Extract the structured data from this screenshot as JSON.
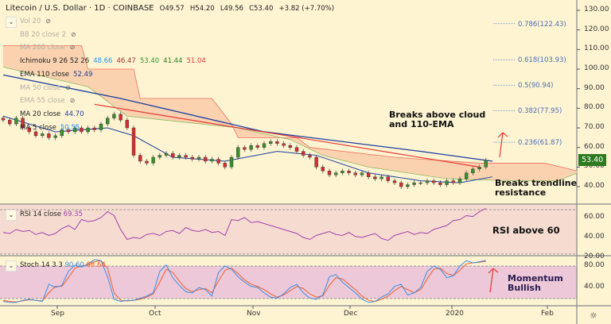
{
  "header": {
    "symbol": "Litecoin / U.S. Dollar · 1D · COINBASE",
    "open": "O49.57",
    "high": "H54.20",
    "low": "L49.56",
    "close": "C53.40",
    "change": "+3.82 (+7.70%)"
  },
  "indicators": [
    {
      "label": "Vol 20",
      "hidden": true
    },
    {
      "label": "BB 20 close 2",
      "hidden": true
    },
    {
      "label": "MA 200 close",
      "hidden": true
    },
    {
      "label": "Ichimoku 9 26 52 26",
      "values": [
        "48.66",
        "46.47",
        "53.40",
        "41.44",
        "51.04"
      ],
      "colors": [
        "#2196f3",
        "#a03030",
        "#3a8f2a",
        "#2d7a1f",
        "#e53935"
      ]
    },
    {
      "label": "EMA 110 close",
      "values": [
        "52.49"
      ],
      "colors": [
        "#1a3e9e"
      ]
    },
    {
      "label": "MA 50 close",
      "hidden": true
    },
    {
      "label": "EMA 55 close",
      "hidden": true
    },
    {
      "label": "MA 20 close",
      "values": [
        "44.70"
      ],
      "colors": [
        "#1a3e9e"
      ]
    },
    {
      "label": "MA 5 close",
      "values": [
        "50.55"
      ],
      "colors": [
        "#2196f3"
      ]
    }
  ],
  "rsi": {
    "label": "RSI 14 close",
    "value": "69.35",
    "color": "#a040b0"
  },
  "stoch": {
    "label": "Stoch 14 3 3",
    "k": "90.60",
    "d": "88.64",
    "k_color": "#3a8ee8",
    "d_color": "#f06030"
  },
  "price_axis": [
    "130.00",
    "120.00",
    "110.00",
    "100.00",
    "90.00",
    "80.00",
    "70.00",
    "60.00",
    "50.00",
    "40.00"
  ],
  "rsi_axis": [
    "60.00",
    "40.00",
    "20.00"
  ],
  "stoch_axis": [
    "80.00",
    "40.00"
  ],
  "last_price": "53.40",
  "x_axis": [
    "Sep",
    "Oct",
    "Nov",
    "Dec",
    "2020",
    "Feb"
  ],
  "fib_levels": [
    {
      "label": "0.786(122.43)",
      "price": 122.43
    },
    {
      "label": "0.618(103.93)",
      "price": 103.93
    },
    {
      "label": "0.5(90.94)",
      "price": 90.94
    },
    {
      "label": "0.382(77.95)",
      "price": 77.95
    },
    {
      "label": "0.236(61.87)",
      "price": 61.87
    }
  ],
  "annotations": {
    "cloud": [
      "Breaks above cloud",
      "and 110-EMA"
    ],
    "trendline": [
      "Breaks trendline",
      "resistance"
    ],
    "rsi": "RSI above 60",
    "stoch": [
      "Momentum",
      "Bullish"
    ]
  },
  "chart_data": {
    "type": "candlestick",
    "closes": [
      74,
      72,
      75,
      70,
      68,
      66,
      67,
      65,
      66,
      69,
      68,
      70,
      68,
      70,
      69,
      72,
      75,
      77,
      74,
      70,
      56,
      53,
      52,
      55,
      56,
      57,
      55,
      56,
      55,
      54,
      55,
      53,
      54,
      52,
      50,
      55,
      60,
      59,
      61,
      60,
      62,
      63,
      62,
      61,
      60,
      58,
      56,
      55,
      50,
      48,
      46,
      47,
      48,
      47,
      46,
      47,
      45,
      44,
      45,
      43,
      42,
      40,
      41,
      42,
      42,
      43,
      42,
      41,
      43,
      42,
      44,
      47,
      49,
      50,
      53.4
    ],
    "ema110": [
      [
        0,
        97
      ],
      [
        18,
        85
      ],
      [
        40,
        68
      ],
      [
        64,
        58
      ],
      [
        75,
        53
      ]
    ],
    "ma20": [
      [
        0,
        76
      ],
      [
        8,
        68
      ],
      [
        16,
        70
      ],
      [
        20,
        66
      ],
      [
        26,
        55
      ],
      [
        34,
        53
      ],
      [
        42,
        58
      ],
      [
        48,
        56
      ],
      [
        56,
        47
      ],
      [
        64,
        43
      ],
      [
        70,
        42
      ],
      [
        75,
        45
      ]
    ],
    "cloud_upper": [
      [
        0,
        112
      ],
      [
        12,
        112
      ],
      [
        13,
        100
      ],
      [
        20,
        100
      ],
      [
        21,
        85
      ],
      [
        32,
        85
      ],
      [
        35,
        72
      ],
      [
        36,
        65
      ],
      [
        45,
        65
      ],
      [
        47,
        60
      ],
      [
        60,
        55
      ],
      [
        73,
        52
      ],
      [
        83,
        52
      ],
      [
        88,
        48
      ]
    ],
    "cloud_lower": [
      [
        0,
        101
      ],
      [
        13,
        91
      ],
      [
        19,
        76
      ],
      [
        36,
        70
      ],
      [
        44,
        64
      ],
      [
        49,
        56
      ],
      [
        56,
        50
      ],
      [
        68,
        44
      ],
      [
        78,
        43
      ],
      [
        85,
        43
      ],
      [
        88,
        47
      ]
    ],
    "trendline": [
      [
        14,
        82
      ],
      [
        73,
        50
      ]
    ],
    "rsi": [
      45,
      44,
      48,
      46,
      47,
      43,
      45,
      42,
      44,
      49,
      52,
      48,
      58,
      56,
      57,
      60,
      66,
      62,
      48,
      38,
      40,
      39,
      43,
      44,
      42,
      46,
      47,
      44,
      50,
      47,
      46,
      48,
      45,
      46,
      42,
      58,
      57,
      60,
      55,
      56,
      54,
      52,
      50,
      48,
      46,
      44,
      40,
      38,
      42,
      44,
      46,
      43,
      42,
      45,
      41,
      40,
      42,
      44,
      39,
      37,
      42,
      44,
      46,
      43,
      45,
      44,
      48,
      50,
      52,
      57,
      58,
      62,
      61,
      66,
      69.35
    ],
    "stoch_k": [
      14,
      12,
      12,
      16,
      18,
      16,
      14,
      46,
      40,
      44,
      70,
      82,
      78,
      84,
      92,
      90,
      60,
      18,
      14,
      16,
      16,
      20,
      24,
      30,
      70,
      82,
      58,
      44,
      32,
      30,
      40,
      36,
      24,
      68,
      80,
      74,
      60,
      50,
      42,
      40,
      30,
      22,
      20,
      28,
      40,
      46,
      30,
      20,
      18,
      26,
      60,
      64,
      50,
      40,
      30,
      18,
      12,
      14,
      22,
      28,
      42,
      46,
      26,
      30,
      40,
      70,
      80,
      74,
      58,
      62,
      80,
      90,
      86,
      88,
      90.6
    ],
    "stoch_d": [
      16,
      14,
      13,
      15,
      17,
      16,
      15,
      30,
      42,
      42,
      58,
      76,
      80,
      82,
      88,
      90,
      76,
      30,
      16,
      15,
      16,
      18,
      22,
      28,
      50,
      74,
      68,
      52,
      38,
      32,
      36,
      38,
      30,
      52,
      72,
      76,
      66,
      54,
      46,
      42,
      36,
      28,
      22,
      26,
      34,
      42,
      38,
      28,
      22,
      24,
      44,
      58,
      56,
      46,
      36,
      24,
      16,
      14,
      18,
      24,
      34,
      42,
      36,
      30,
      36,
      56,
      74,
      76,
      66,
      62,
      72,
      84,
      86,
      87,
      88.64
    ]
  }
}
